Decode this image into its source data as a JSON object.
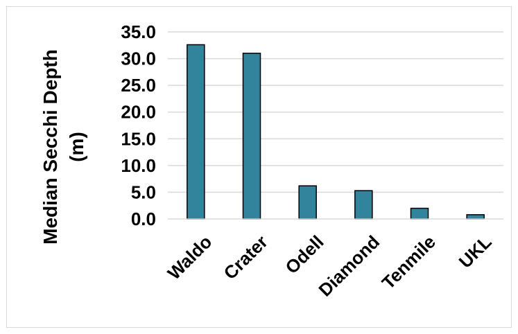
{
  "chart_data": {
    "type": "bar",
    "title": "",
    "xlabel": "",
    "ylabel_lines": [
      "Median Secchi Depth",
      "(m)"
    ],
    "categories": [
      "Waldo",
      "Crater",
      "Odell",
      "Diamond",
      "Tenmile",
      "UKL"
    ],
    "values": [
      32.6,
      31.0,
      6.2,
      5.3,
      2.0,
      0.8
    ],
    "ylim": [
      0,
      35
    ],
    "yticks": [
      "0.0",
      "5.0",
      "10.0",
      "15.0",
      "20.0",
      "25.0",
      "30.0",
      "35.0"
    ],
    "grid": true,
    "legend": "none",
    "colors": {
      "bar_fill": "#31849B",
      "bar_stroke": "#000000",
      "gridline": "#D9D9D9",
      "frame": "#D9D9D9"
    }
  }
}
